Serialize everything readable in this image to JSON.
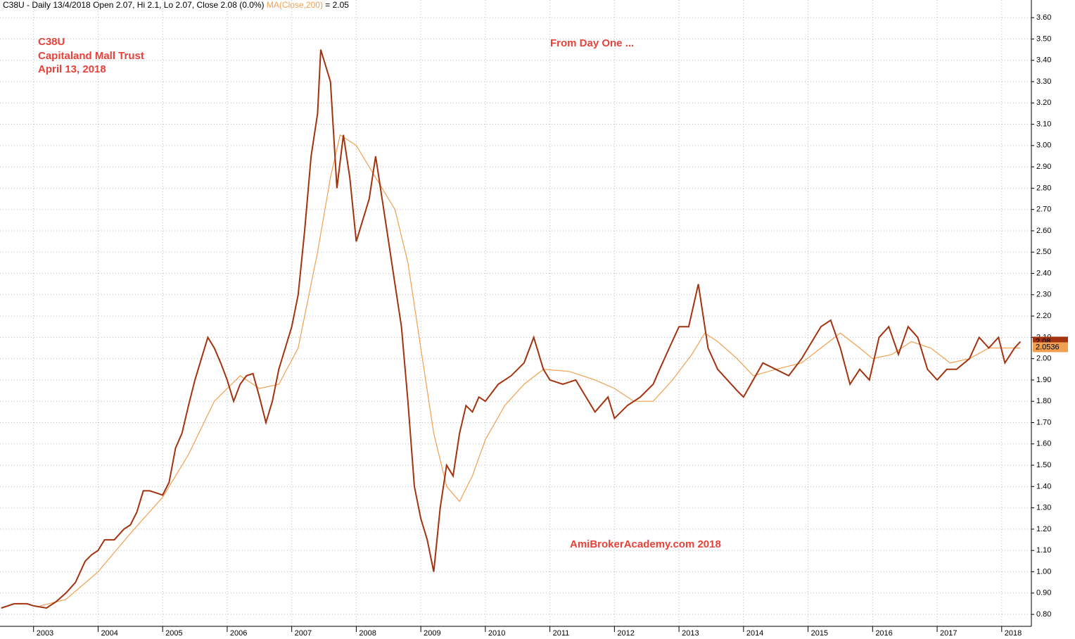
{
  "chart_data": {
    "type": "line",
    "title": "C38U - Daily 13/4/2018 Open 2.07, Hi 2.1, Lo 2.07, Close 2.08 (0.0%)",
    "ma_readout": "= 2.05",
    "annotations": [
      "C38U",
      "Capitaland Mall Trust",
      "April 13, 2018",
      "From Day One ...",
      "AmiBrokerAcademy.com  2018"
    ],
    "price_tags": [
      {
        "value": 2.08,
        "label": "2.08"
      },
      {
        "value": 2.0536,
        "label": "2.0536"
      }
    ],
    "series": [
      {
        "color": "#a3330f",
        "x": [
          2002.5,
          2002.7,
          2002.9,
          2003.0,
          2003.2,
          2003.35,
          2003.5,
          2003.65,
          2003.8,
          2003.9,
          2004.0,
          2004.1,
          2004.25,
          2004.4,
          2004.5,
          2004.6,
          2004.7,
          2004.8,
          2004.9,
          2005.0,
          2005.1,
          2005.2,
          2005.3,
          2005.4,
          2005.5,
          2005.6,
          2005.7,
          2005.8,
          2005.9,
          2006.0,
          2006.1,
          2006.2,
          2006.3,
          2006.4,
          2006.5,
          2006.6,
          2006.7,
          2006.8,
          2006.9,
          2007.0,
          2007.1,
          2007.2,
          2007.3,
          2007.4,
          2007.45,
          2007.5,
          2007.6,
          2007.7,
          2007.8,
          2007.9,
          2008.0,
          2008.1,
          2008.2,
          2008.3,
          2008.4,
          2008.5,
          2008.6,
          2008.7,
          2008.8,
          2008.9,
          2009.0,
          2009.1,
          2009.2,
          2009.3,
          2009.4,
          2009.5,
          2009.6,
          2009.7,
          2009.8,
          2009.9,
          2010.0,
          2010.2,
          2010.4,
          2010.6,
          2010.75,
          2010.9,
          2011.0,
          2011.2,
          2011.4,
          2011.5,
          2011.7,
          2011.9,
          2012.0,
          2012.2,
          2012.4,
          2012.6,
          2012.7,
          2012.85,
          2013.0,
          2013.15,
          2013.3,
          2013.45,
          2013.6,
          2013.75,
          2013.9,
          2014.0,
          2014.15,
          2014.3,
          2014.5,
          2014.7,
          2014.9,
          2015.0,
          2015.2,
          2015.35,
          2015.5,
          2015.65,
          2015.8,
          2015.95,
          2016.1,
          2016.25,
          2016.4,
          2016.55,
          2016.7,
          2016.85,
          2017.0,
          2017.15,
          2017.3,
          2017.5,
          2017.65,
          2017.8,
          2017.95,
          2018.05,
          2018.2,
          2018.29
        ],
        "values": [
          0.83,
          0.85,
          0.85,
          0.84,
          0.83,
          0.86,
          0.9,
          0.95,
          1.05,
          1.08,
          1.1,
          1.15,
          1.15,
          1.2,
          1.22,
          1.28,
          1.38,
          1.38,
          1.37,
          1.36,
          1.42,
          1.58,
          1.65,
          1.78,
          1.9,
          2.0,
          2.1,
          2.05,
          1.98,
          1.9,
          1.8,
          1.88,
          1.92,
          1.93,
          1.82,
          1.7,
          1.8,
          1.95,
          2.05,
          2.15,
          2.3,
          2.6,
          2.95,
          3.15,
          3.45,
          3.4,
          3.3,
          2.8,
          3.05,
          2.85,
          2.55,
          2.65,
          2.75,
          2.95,
          2.75,
          2.55,
          2.35,
          2.15,
          1.8,
          1.4,
          1.25,
          1.15,
          1.0,
          1.3,
          1.5,
          1.45,
          1.65,
          1.78,
          1.75,
          1.82,
          1.8,
          1.88,
          1.92,
          1.98,
          2.1,
          1.95,
          1.9,
          1.88,
          1.9,
          1.85,
          1.75,
          1.82,
          1.72,
          1.78,
          1.82,
          1.88,
          1.95,
          2.05,
          2.15,
          2.15,
          2.35,
          2.05,
          1.95,
          1.9,
          1.85,
          1.82,
          1.9,
          1.98,
          1.95,
          1.92,
          2.0,
          2.05,
          2.15,
          2.18,
          2.05,
          1.88,
          1.95,
          1.9,
          2.1,
          2.15,
          2.02,
          2.15,
          2.1,
          1.95,
          1.9,
          1.95,
          1.95,
          2.0,
          2.1,
          2.05,
          2.1,
          1.98,
          2.05,
          2.08
        ]
      },
      {
        "name": "MA(Close,200)",
        "color": "#f0a050",
        "x": [
          2003.1,
          2003.5,
          2004.0,
          2004.5,
          2005.0,
          2005.4,
          2005.8,
          2006.2,
          2006.5,
          2006.8,
          2007.1,
          2007.4,
          2007.6,
          2007.75,
          2008.0,
          2008.3,
          2008.6,
          2008.8,
          2009.0,
          2009.2,
          2009.4,
          2009.6,
          2009.8,
          2010.0,
          2010.3,
          2010.6,
          2010.9,
          2011.3,
          2011.7,
          2012.0,
          2012.3,
          2012.6,
          2012.9,
          2013.2,
          2013.4,
          2013.6,
          2013.9,
          2014.15,
          2014.5,
          2014.9,
          2015.2,
          2015.5,
          2015.8,
          2016.0,
          2016.3,
          2016.6,
          2016.9,
          2017.2,
          2017.5,
          2017.8,
          2018.29
        ],
        "values": [
          0.84,
          0.87,
          1.0,
          1.18,
          1.35,
          1.55,
          1.8,
          1.92,
          1.86,
          1.88,
          2.05,
          2.5,
          2.85,
          3.05,
          3.0,
          2.85,
          2.7,
          2.45,
          2.05,
          1.65,
          1.4,
          1.33,
          1.45,
          1.62,
          1.78,
          1.88,
          1.95,
          1.94,
          1.9,
          1.86,
          1.8,
          1.8,
          1.9,
          2.02,
          2.12,
          2.08,
          2.0,
          1.92,
          1.95,
          1.98,
          2.05,
          2.12,
          2.05,
          2.0,
          2.02,
          2.08,
          2.05,
          1.98,
          2.0,
          2.05,
          2.05
        ]
      }
    ],
    "xlim": [
      2002.48,
      2018.46
    ],
    "xticks": [
      2003,
      2004,
      2005,
      2006,
      2007,
      2008,
      2009,
      2010,
      2011,
      2012,
      2013,
      2014,
      2015,
      2016,
      2017,
      2018
    ],
    "ylim": [
      0.744,
      3.683
    ],
    "yticks": [
      {
        "value": 0.8,
        "label": "0.80"
      },
      {
        "value": 0.9,
        "label": "0.90"
      },
      {
        "value": 1.0,
        "label": "1.00"
      },
      {
        "value": 1.1,
        "label": "1.10"
      },
      {
        "value": 1.2,
        "label": "1.20"
      },
      {
        "value": 1.3,
        "label": "1.30"
      },
      {
        "value": 1.4,
        "label": "1.40"
      },
      {
        "value": 1.5,
        "label": "1.50"
      },
      {
        "value": 1.6,
        "label": "1.60"
      },
      {
        "value": 1.7,
        "label": "1.70"
      },
      {
        "value": 1.8,
        "label": "1.80"
      },
      {
        "value": 1.9,
        "label": "1.90"
      },
      {
        "value": 2.0,
        "label": "2.00"
      },
      {
        "value": 2.1,
        "label": "2.10"
      },
      {
        "value": 2.2,
        "label": "2.20"
      },
      {
        "value": 2.3,
        "label": "2.30"
      },
      {
        "value": 2.4,
        "label": "2.40"
      },
      {
        "value": 2.5,
        "label": "2.50"
      },
      {
        "value": 2.6,
        "label": "2.60"
      },
      {
        "value": 2.7,
        "label": "2.70"
      },
      {
        "value": 2.8,
        "label": "2.80"
      },
      {
        "value": 2.9,
        "label": "2.90"
      },
      {
        "value": 3.0,
        "label": "3.00"
      },
      {
        "value": 3.1,
        "label": "3.10"
      },
      {
        "value": 3.2,
        "label": "3.20"
      },
      {
        "value": 3.3,
        "label": "3.30"
      },
      {
        "value": 3.4,
        "label": "3.40"
      },
      {
        "value": 3.5,
        "label": "3.50"
      },
      {
        "value": 3.6,
        "label": "3.60"
      }
    ],
    "grid": true
  }
}
